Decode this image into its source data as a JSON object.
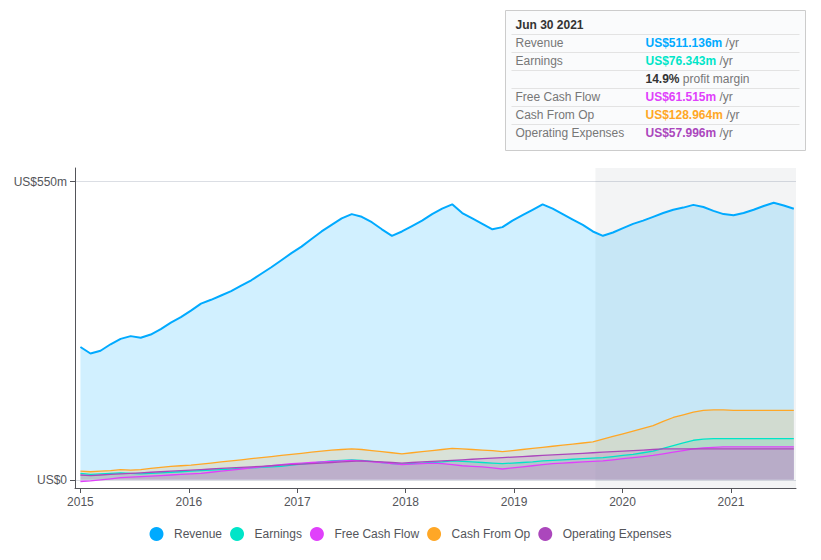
{
  "chart_data": {
    "type": "area",
    "x": [
      2015.0,
      2015.0927,
      2015.1854,
      2015.278,
      2015.3707,
      2015.4634,
      2015.5561,
      2015.6487,
      2015.7414,
      2015.8341,
      2015.9268,
      2016.0194,
      2016.1121,
      2016.2048,
      2016.2975,
      2016.3901,
      2016.4828,
      2016.5755,
      2016.6682,
      2016.7608,
      2016.8535,
      2016.9462,
      2017.0389,
      2017.1315,
      2017.2242,
      2017.3169,
      2017.4096,
      2017.5023,
      2017.5949,
      2017.6876,
      2017.7803,
      2017.873,
      2017.9656,
      2018.0583,
      2018.151,
      2018.2437,
      2018.3363,
      2018.429,
      2018.5217,
      2018.6144,
      2018.707,
      2018.7997,
      2018.8924,
      2018.9851,
      2019.0777,
      2019.1704,
      2019.2631,
      2019.3558,
      2019.4485,
      2019.5411,
      2019.6338,
      2019.7265,
      2019.8192,
      2019.9118,
      2020.0045,
      2020.0972,
      2020.1899,
      2020.2825,
      2020.3752,
      2020.4679,
      2020.5606,
      2020.6532,
      2020.7459,
      2020.8386,
      2020.9313,
      2021.0239,
      2021.1166,
      2021.2093,
      2021.302,
      2021.3946,
      2021.4873,
      2021.58
    ],
    "series": [
      {
        "name": "Revenue",
        "color": "#00aaff",
        "values": [
          245,
          233,
          238,
          250,
          260,
          265,
          262,
          268,
          278,
          290,
          300,
          312,
          325,
          332,
          340,
          348,
          358,
          368,
          380,
          392,
          405,
          418,
          430,
          444,
          458,
          470,
          482,
          490,
          485,
          475,
          462,
          450,
          458,
          468,
          478,
          490,
          500,
          508,
          492,
          482,
          472,
          462,
          466,
          478,
          488,
          498,
          508,
          500,
          490,
          480,
          470,
          458,
          450,
          456,
          464,
          472,
          478,
          485,
          492,
          498,
          502,
          507,
          503,
          496,
          490,
          488,
          492,
          498,
          505,
          511,
          506,
          500
        ]
      },
      {
        "name": "Earnings",
        "color": "#00e5c8",
        "values": [
          12,
          10,
          11,
          12,
          13,
          12,
          11,
          12,
          13,
          14,
          15,
          16,
          17,
          18,
          19,
          20,
          21,
          22,
          23,
          24,
          25,
          27,
          29,
          31,
          33,
          35,
          36,
          37,
          36,
          34,
          32,
          30,
          29,
          30,
          31,
          32,
          33,
          35,
          34,
          33,
          32,
          31,
          30,
          31,
          32,
          33,
          35,
          36,
          37,
          38,
          39,
          40,
          41,
          43,
          45,
          47,
          50,
          53,
          58,
          63,
          68,
          73,
          75,
          76,
          76,
          76,
          76,
          76,
          76,
          76,
          76,
          76
        ]
      },
      {
        "name": "Free Cash Flow",
        "color": "#e040fb",
        "values": [
          -3,
          -2,
          0,
          2,
          4,
          5,
          6,
          7,
          8,
          9,
          10,
          11,
          12,
          14,
          16,
          18,
          20,
          22,
          24,
          26,
          28,
          30,
          31,
          32,
          33,
          34,
          35,
          36,
          35,
          33,
          32,
          30,
          28,
          29,
          30,
          31,
          30,
          28,
          26,
          25,
          24,
          22,
          20,
          22,
          24,
          26,
          28,
          30,
          31,
          32,
          33,
          34,
          35,
          37,
          39,
          41,
          43,
          45,
          48,
          51,
          54,
          57,
          59,
          60,
          61,
          61,
          61,
          61,
          61,
          61,
          61,
          61
        ]
      },
      {
        "name": "Cash From Op",
        "color": "#ffa726",
        "values": [
          16,
          15,
          16,
          17,
          19,
          18,
          19,
          21,
          23,
          25,
          26,
          27,
          29,
          31,
          33,
          35,
          37,
          39,
          41,
          43,
          45,
          47,
          49,
          51,
          53,
          55,
          56,
          57,
          56,
          54,
          52,
          50,
          48,
          50,
          52,
          54,
          56,
          58,
          57,
          56,
          55,
          54,
          52,
          54,
          56,
          58,
          60,
          62,
          64,
          66,
          68,
          70,
          75,
          80,
          85,
          90,
          95,
          100,
          108,
          115,
          120,
          125,
          128,
          129,
          129,
          128,
          128,
          128,
          128,
          128,
          128,
          128
        ]
      },
      {
        "name": "Operating Expenses",
        "color": "#ab47bc",
        "values": [
          9,
          8,
          9,
          10,
          11,
          12,
          13,
          14,
          15,
          16,
          17,
          18,
          19,
          20,
          21,
          22,
          23,
          24,
          25,
          26,
          27,
          28,
          29,
          30,
          31,
          32,
          33,
          34,
          35,
          34,
          33,
          32,
          31,
          32,
          33,
          34,
          35,
          36,
          37,
          38,
          39,
          40,
          41,
          42,
          43,
          44,
          45,
          46,
          47,
          48,
          49,
          50,
          51,
          52,
          53,
          54,
          55,
          56,
          57,
          57,
          57,
          57,
          57,
          57,
          57,
          57,
          57,
          57,
          57,
          57,
          57,
          57
        ]
      }
    ],
    "xlim": [
      2014.95,
      2021.6
    ],
    "xticks": [
      2015,
      2016,
      2017,
      2018,
      2019,
      2020,
      2021
    ],
    "ylim": [
      -15,
      575
    ],
    "yticks": [
      {
        "value": 0,
        "label": "US$0"
      },
      {
        "value": 550,
        "label": "US$550m"
      }
    ],
    "grid": true,
    "legend": "bottom",
    "highlight_span": [
      2019.75,
      2021.68
    ],
    "annotations": [
      {
        "text": "Jun 30 2021"
      },
      {
        "label": "Revenue",
        "text": "US$511.136m",
        "suffix": " /yr",
        "color": "#00aaff"
      },
      {
        "label": "Earnings",
        "text": "US$76.343m",
        "suffix": " /yr",
        "color": "#00e5c8"
      },
      {
        "text": "14.9%",
        "suffix": " profit margin"
      },
      {
        "label": "Free Cash Flow",
        "text": "US$61.515m",
        "suffix": " /yr",
        "color": "#e040fb"
      },
      {
        "label": "Cash From Op",
        "text": "US$128.964m",
        "suffix": " /yr",
        "color": "#ffa726"
      },
      {
        "label": "Operating Expenses",
        "text": "US$57.996m",
        "suffix": " /yr",
        "color": "#ab47bc"
      }
    ]
  }
}
